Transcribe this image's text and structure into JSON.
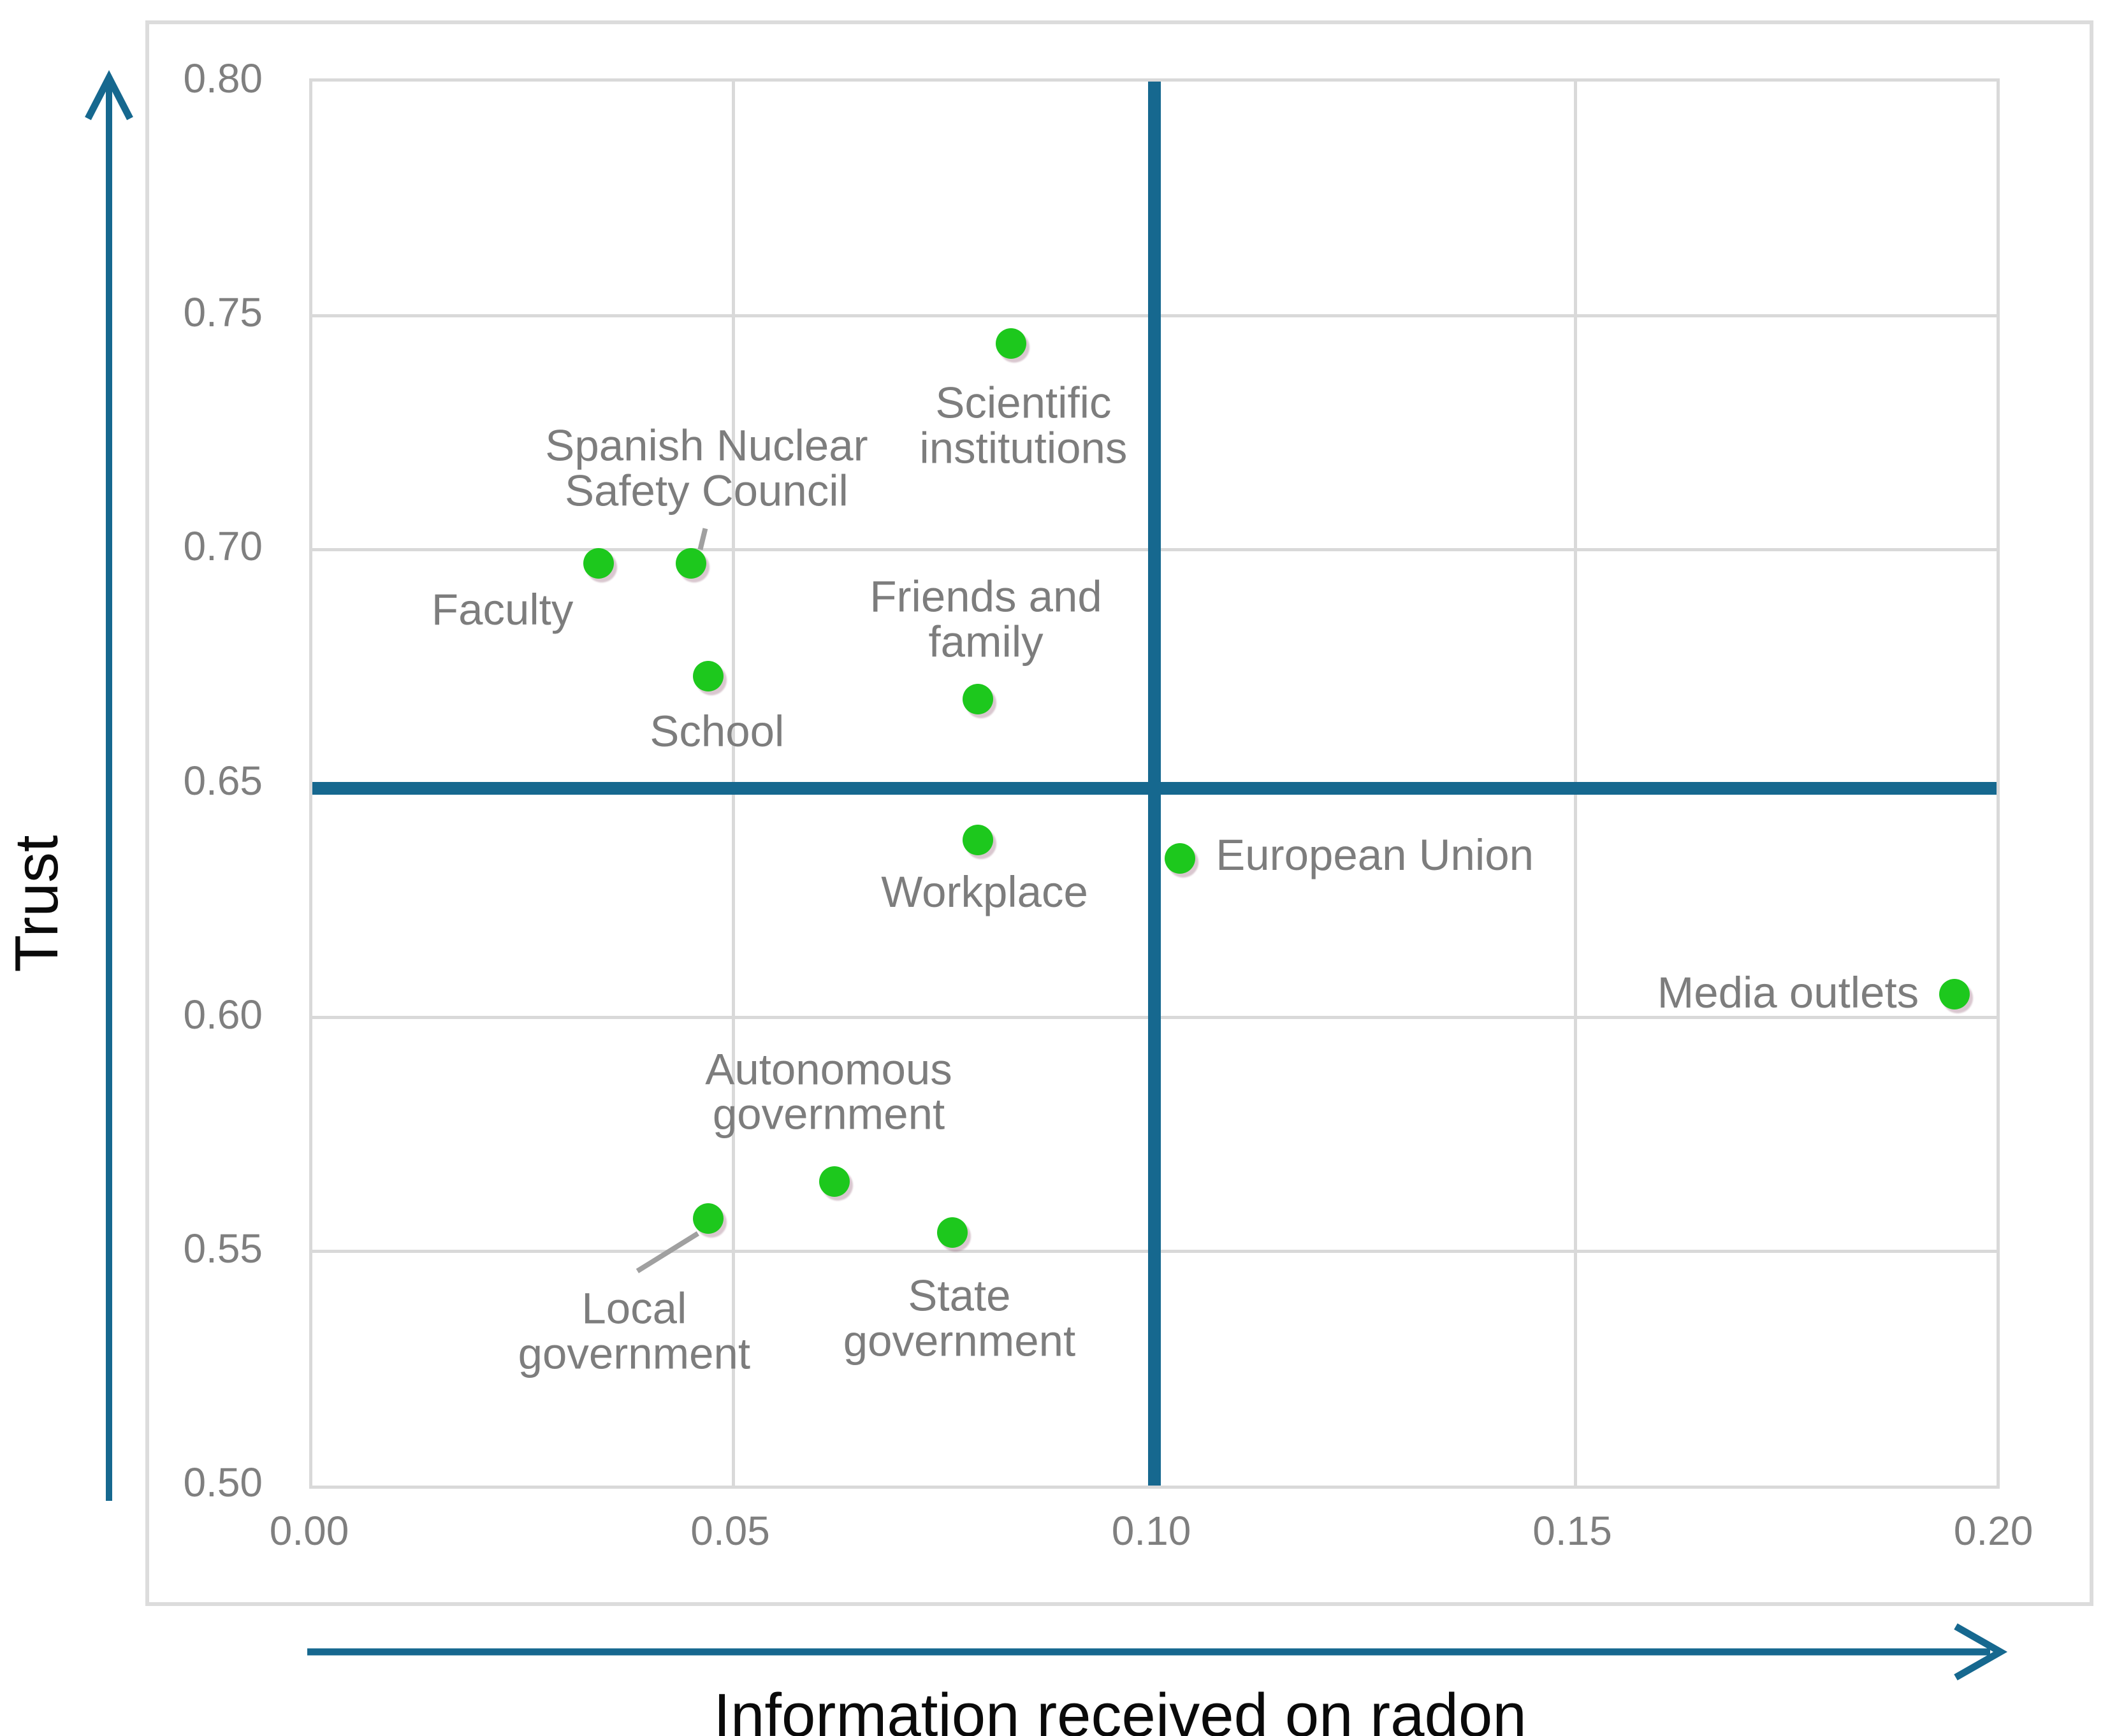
{
  "figure": {
    "y_axis_title": "Trust",
    "x_axis_title": "Information received on radon"
  },
  "colors": {
    "point_green": "#1dc81d",
    "crosshair_blue": "#16688f",
    "grid_gray": "#d9d9d9",
    "label_gray": "#7d7d7d",
    "tick_gray": "#7f7f7f",
    "leader_gray": "#a0a0a0"
  },
  "chart_data": {
    "type": "scatter",
    "title": "",
    "xlabel": "Information received on radon",
    "ylabel": "Trust",
    "xlim": [
      0.0,
      0.2
    ],
    "ylim": [
      0.5,
      0.8
    ],
    "x_tick_labels": [
      "0.00",
      "0.05",
      "0.10",
      "0.15",
      "0.20"
    ],
    "y_tick_labels": [
      "0.80",
      "0.75",
      "0.70",
      "0.65",
      "0.60",
      "0.55",
      "0.50"
    ],
    "grid": true,
    "legend_position": "none",
    "crosshair": {
      "x": 0.1,
      "y": 0.649
    },
    "points": [
      {
        "id": "scientific-institutions",
        "label_lines": [
          "Scientific",
          "institutions"
        ],
        "x": 0.083,
        "y": 0.744,
        "label_offset": [
          19,
          129
        ],
        "leader": null
      },
      {
        "id": "spanish-nuclear-safety-council",
        "label_lines": [
          "Spanish Nuclear",
          "Safety Council"
        ],
        "x": 0.045,
        "y": 0.697,
        "label_offset": [
          24,
          -149
        ],
        "leader": [
          [
            22,
            -55
          ],
          [
            14,
            -22
          ]
        ]
      },
      {
        "id": "faculty",
        "label_lines": [
          "Faculty"
        ],
        "x": 0.034,
        "y": 0.697,
        "label_offset": [
          -151,
          73
        ],
        "leader": null
      },
      {
        "id": "school",
        "label_lines": [
          "School"
        ],
        "x": 0.047,
        "y": 0.673,
        "label_offset": [
          14,
          87
        ],
        "leader": null
      },
      {
        "id": "friends-and-family",
        "label_lines": [
          "Friends and",
          "family"
        ],
        "x": 0.079,
        "y": 0.668,
        "label_offset": [
          13,
          -125
        ],
        "leader": null
      },
      {
        "id": "workplace",
        "label_lines": [
          "Workplace"
        ],
        "x": 0.079,
        "y": 0.638,
        "label_offset": [
          11,
          82
        ],
        "leader": null
      },
      {
        "id": "european-union",
        "label_lines": [
          "European Union"
        ],
        "x": 0.103,
        "y": 0.634,
        "label_offset": [
          306,
          -5
        ],
        "leader": null
      },
      {
        "id": "media-outlets",
        "label_lines": [
          "Media outlets"
        ],
        "x": 0.195,
        "y": 0.605,
        "label_offset": [
          -261,
          -2
        ],
        "leader": null
      },
      {
        "id": "autonomous-government",
        "label_lines": [
          "Autonomous",
          "government"
        ],
        "x": 0.062,
        "y": 0.565,
        "label_offset": [
          -9,
          -140
        ],
        "leader": null
      },
      {
        "id": "local-government",
        "label_lines": [
          "Local",
          "government"
        ],
        "x": 0.047,
        "y": 0.557,
        "label_offset": [
          -116,
          177
        ],
        "leader": [
          [
            -111,
            82
          ],
          [
            -16,
            23
          ]
        ]
      },
      {
        "id": "state-government",
        "label_lines": [
          "State",
          "government"
        ],
        "x": 0.076,
        "y": 0.554,
        "label_offset": [
          11,
          135
        ],
        "leader": null
      }
    ]
  }
}
